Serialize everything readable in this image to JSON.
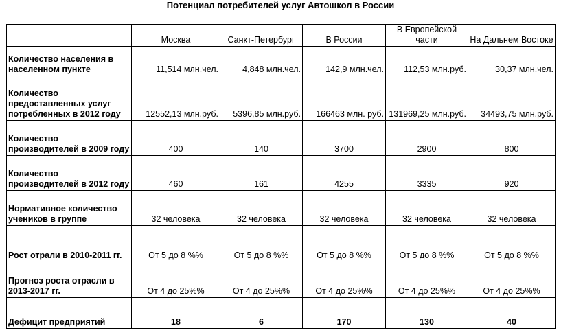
{
  "title": "Потенциал потребителей услуг Автошкол в России",
  "table": {
    "columns": [
      "Москва",
      "Санкт-Петербург",
      "В России",
      "В Европейской части",
      "На Дальнем Востоке"
    ],
    "rows": [
      {
        "label": "Количество населения в населенном пункте",
        "values": [
          "11,514 млн.чел.",
          "4,848 млн.чел.",
          "142,9 млн.чел.",
          "112,53 млн.руб.",
          "30,37 млн.чел."
        ]
      },
      {
        "label": "Количество предоставленных услуг потребленных в 2012 году",
        "values": [
          "12552,13 млн.руб.",
          "5396,85 млн.руб.",
          "166463 млн. руб.",
          "131969,25 млн.руб.",
          "34493,75 млн.руб."
        ]
      },
      {
        "label": "Количество производителей в 2009 году",
        "values": [
          "400",
          "140",
          "3700",
          "2900",
          "800"
        ]
      },
      {
        "label": "Количество производителей в 2012 году",
        "values": [
          "460",
          "161",
          "4255",
          "3335",
          "920"
        ]
      },
      {
        "label": "Нормативное количество учеников в группе",
        "values": [
          "32 человека",
          "32 человека",
          "32 человека",
          "32 человека",
          "32 человека"
        ]
      },
      {
        "label": "Рост отрали в 2010-2011 гг.",
        "values": [
          "От 5 до 8 %%",
          "От 5 до 8 %%",
          "От 5 до 8 %%",
          "От 5 до 8 %%",
          "От 5 до 8 %%"
        ]
      },
      {
        "label": "Прогноз роста отрасли в 2013-2017 гг.",
        "values": [
          "От 4 до 25%%",
          "От 4 до 25%%",
          "От 4 до 25%%",
          "От 4 до 25%%",
          "От 4 до 25%%"
        ]
      },
      {
        "label": "Дефицит предприятий",
        "values": [
          "18",
          "6",
          "170",
          "130",
          "40"
        ]
      }
    ]
  }
}
